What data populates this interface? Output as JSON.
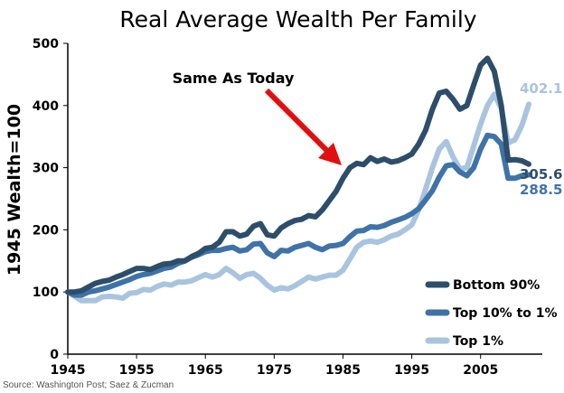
{
  "chart_data": {
    "type": "line",
    "title": "Real Average Wealth Per Family",
    "ylabel": "1945 Wealth=100",
    "xlabel": "",
    "xlim": [
      1945,
      2012
    ],
    "ylim": [
      0,
      500
    ],
    "x_ticks": [
      "1945",
      "1955",
      "1965",
      "1975",
      "1985",
      "1995",
      "2005"
    ],
    "y_ticks": [
      "0",
      "100",
      "200",
      "300",
      "400",
      "500"
    ],
    "grid": false,
    "legend_position": "bottom-right",
    "annotation": "Same As Today",
    "series": [
      {
        "name": "Bottom 90%",
        "color": "#2d4e6b",
        "end_label": "305.6",
        "points": [
          [
            1945,
            100
          ],
          [
            1946,
            100
          ],
          [
            1947,
            102
          ],
          [
            1948,
            108
          ],
          [
            1949,
            114
          ],
          [
            1950,
            117
          ],
          [
            1951,
            119
          ],
          [
            1952,
            124
          ],
          [
            1953,
            128
          ],
          [
            1954,
            133
          ],
          [
            1955,
            138
          ],
          [
            1956,
            138
          ],
          [
            1957,
            136
          ],
          [
            1958,
            141
          ],
          [
            1959,
            145
          ],
          [
            1960,
            146
          ],
          [
            1961,
            150
          ],
          [
            1962,
            150
          ],
          [
            1963,
            157
          ],
          [
            1964,
            162
          ],
          [
            1965,
            170
          ],
          [
            1966,
            172
          ],
          [
            1967,
            180
          ],
          [
            1968,
            197
          ],
          [
            1969,
            197
          ],
          [
            1970,
            190
          ],
          [
            1971,
            193
          ],
          [
            1972,
            206
          ],
          [
            1973,
            210
          ],
          [
            1974,
            192
          ],
          [
            1975,
            190
          ],
          [
            1976,
            203
          ],
          [
            1977,
            210
          ],
          [
            1978,
            215
          ],
          [
            1979,
            217
          ],
          [
            1980,
            223
          ],
          [
            1981,
            221
          ],
          [
            1982,
            232
          ],
          [
            1983,
            247
          ],
          [
            1984,
            262
          ],
          [
            1985,
            283
          ],
          [
            1986,
            300
          ],
          [
            1987,
            307
          ],
          [
            1988,
            305
          ],
          [
            1989,
            316
          ],
          [
            1990,
            310
          ],
          [
            1991,
            314
          ],
          [
            1992,
            309
          ],
          [
            1993,
            311
          ],
          [
            1994,
            316
          ],
          [
            1995,
            322
          ],
          [
            1996,
            338
          ],
          [
            1997,
            360
          ],
          [
            1998,
            394
          ],
          [
            1999,
            420
          ],
          [
            2000,
            423
          ],
          [
            2001,
            410
          ],
          [
            2002,
            394
          ],
          [
            2003,
            400
          ],
          [
            2004,
            433
          ],
          [
            2005,
            465
          ],
          [
            2006,
            476
          ],
          [
            2007,
            455
          ],
          [
            2008,
            400
          ],
          [
            2009,
            312
          ],
          [
            2010,
            313
          ],
          [
            2011,
            311
          ],
          [
            2012,
            305.6
          ]
        ]
      },
      {
        "name": "Top 10% to 1%",
        "color": "#3f73a8",
        "end_label": "288.5",
        "points": [
          [
            1945,
            100
          ],
          [
            1946,
            95
          ],
          [
            1947,
            95
          ],
          [
            1948,
            100
          ],
          [
            1949,
            102
          ],
          [
            1950,
            105
          ],
          [
            1951,
            108
          ],
          [
            1952,
            112
          ],
          [
            1953,
            116
          ],
          [
            1954,
            120
          ],
          [
            1955,
            125
          ],
          [
            1956,
            128
          ],
          [
            1957,
            130
          ],
          [
            1958,
            134
          ],
          [
            1959,
            138
          ],
          [
            1960,
            140
          ],
          [
            1961,
            146
          ],
          [
            1962,
            150
          ],
          [
            1963,
            156
          ],
          [
            1964,
            160
          ],
          [
            1965,
            165
          ],
          [
            1966,
            167
          ],
          [
            1967,
            167
          ],
          [
            1968,
            170
          ],
          [
            1969,
            172
          ],
          [
            1970,
            166
          ],
          [
            1971,
            168
          ],
          [
            1972,
            177
          ],
          [
            1973,
            178
          ],
          [
            1974,
            163
          ],
          [
            1975,
            157
          ],
          [
            1976,
            167
          ],
          [
            1977,
            166
          ],
          [
            1978,
            172
          ],
          [
            1979,
            175
          ],
          [
            1980,
            178
          ],
          [
            1981,
            172
          ],
          [
            1982,
            168
          ],
          [
            1983,
            174
          ],
          [
            1984,
            175
          ],
          [
            1985,
            178
          ],
          [
            1986,
            189
          ],
          [
            1987,
            198
          ],
          [
            1988,
            199
          ],
          [
            1989,
            205
          ],
          [
            1990,
            204
          ],
          [
            1991,
            207
          ],
          [
            1992,
            212
          ],
          [
            1993,
            216
          ],
          [
            1994,
            220
          ],
          [
            1995,
            226
          ],
          [
            1996,
            234
          ],
          [
            1997,
            248
          ],
          [
            1998,
            263
          ],
          [
            1999,
            285
          ],
          [
            2000,
            303
          ],
          [
            2001,
            305
          ],
          [
            2002,
            293
          ],
          [
            2003,
            287
          ],
          [
            2004,
            300
          ],
          [
            2005,
            330
          ],
          [
            2006,
            352
          ],
          [
            2007,
            350
          ],
          [
            2008,
            338
          ],
          [
            2009,
            283
          ],
          [
            2010,
            283
          ],
          [
            2011,
            287
          ],
          [
            2012,
            288.5
          ]
        ]
      },
      {
        "name": "Top 1%",
        "color": "#a9c4df",
        "end_label": "402.1",
        "points": [
          [
            1945,
            100
          ],
          [
            1946,
            93
          ],
          [
            1947,
            86
          ],
          [
            1948,
            86
          ],
          [
            1949,
            86
          ],
          [
            1950,
            92
          ],
          [
            1951,
            93
          ],
          [
            1952,
            92
          ],
          [
            1953,
            90
          ],
          [
            1954,
            98
          ],
          [
            1955,
            99
          ],
          [
            1956,
            104
          ],
          [
            1957,
            103
          ],
          [
            1958,
            109
          ],
          [
            1959,
            113
          ],
          [
            1960,
            111
          ],
          [
            1961,
            116
          ],
          [
            1962,
            116
          ],
          [
            1963,
            118
          ],
          [
            1964,
            123
          ],
          [
            1965,
            128
          ],
          [
            1966,
            124
          ],
          [
            1967,
            128
          ],
          [
            1968,
            138
          ],
          [
            1969,
            131
          ],
          [
            1970,
            122
          ],
          [
            1971,
            128
          ],
          [
            1972,
            130
          ],
          [
            1973,
            122
          ],
          [
            1974,
            111
          ],
          [
            1975,
            103
          ],
          [
            1976,
            107
          ],
          [
            1977,
            105
          ],
          [
            1978,
            110
          ],
          [
            1979,
            117
          ],
          [
            1980,
            124
          ],
          [
            1981,
            121
          ],
          [
            1982,
            124
          ],
          [
            1983,
            127
          ],
          [
            1984,
            127
          ],
          [
            1985,
            135
          ],
          [
            1986,
            153
          ],
          [
            1987,
            172
          ],
          [
            1988,
            180
          ],
          [
            1989,
            182
          ],
          [
            1990,
            180
          ],
          [
            1991,
            184
          ],
          [
            1992,
            190
          ],
          [
            1993,
            193
          ],
          [
            1994,
            200
          ],
          [
            1995,
            208
          ],
          [
            1996,
            232
          ],
          [
            1997,
            265
          ],
          [
            1998,
            300
          ],
          [
            1999,
            330
          ],
          [
            2000,
            342
          ],
          [
            2001,
            317
          ],
          [
            2002,
            298
          ],
          [
            2003,
            300
          ],
          [
            2004,
            335
          ],
          [
            2005,
            370
          ],
          [
            2006,
            400
          ],
          [
            2007,
            418
          ],
          [
            2008,
            395
          ],
          [
            2009,
            340
          ],
          [
            2010,
            345
          ],
          [
            2011,
            368
          ],
          [
            2012,
            402.1
          ]
        ]
      }
    ]
  },
  "source_text": "Source: Washington Post; Saez & Zucman"
}
